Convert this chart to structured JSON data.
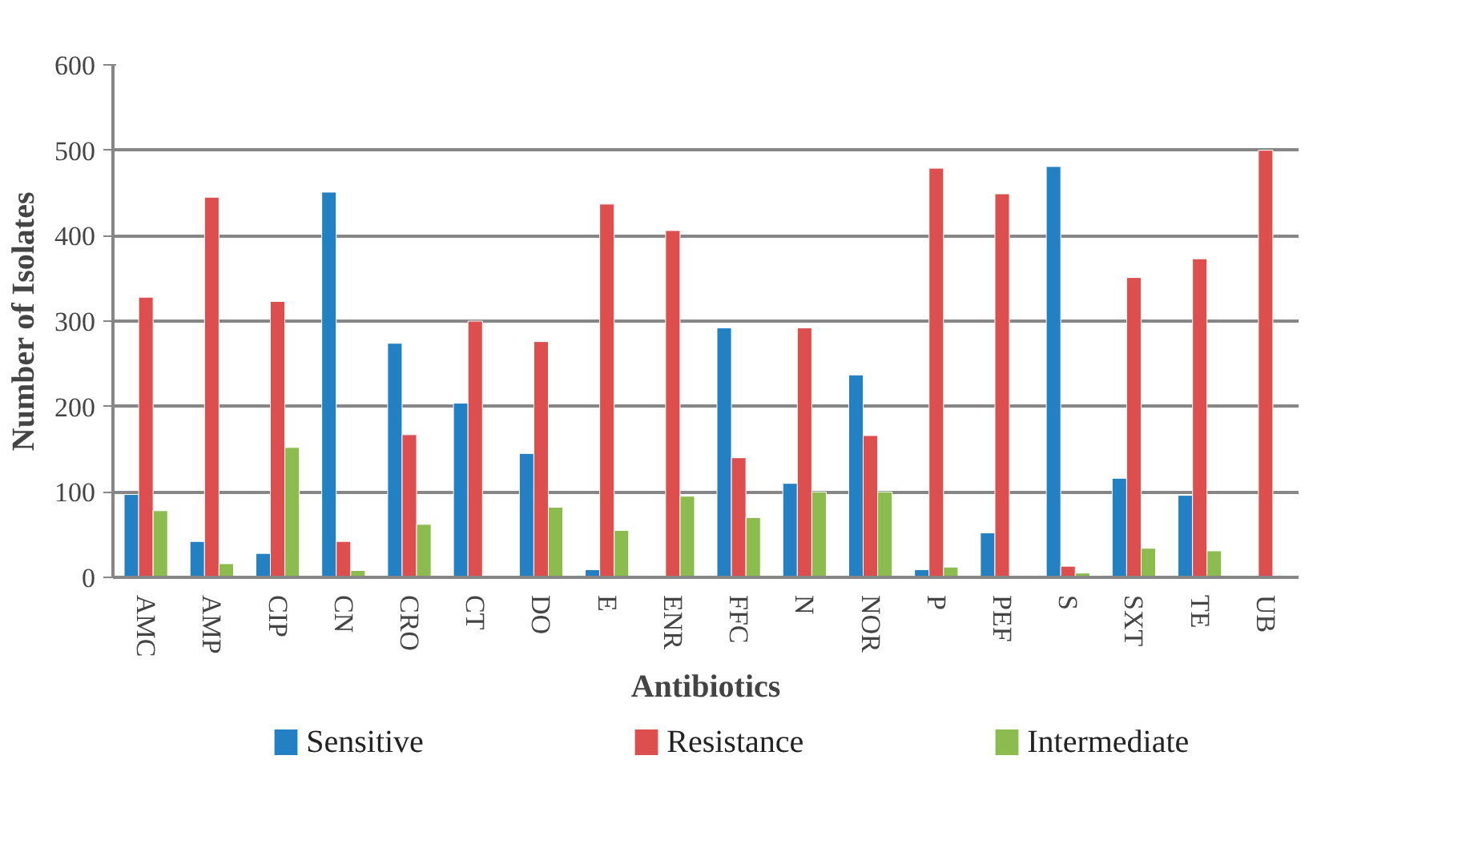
{
  "chart_data": {
    "type": "bar",
    "xlabel": "Antibiotics",
    "ylabel": "Number of Isolates",
    "categories": [
      "AMC",
      "AMP",
      "CIP",
      "CN",
      "CRO",
      "CT",
      "DO",
      "E",
      "ENR",
      "FFC",
      "N",
      "NOR",
      "P",
      "PEF",
      "S",
      "SXT",
      "TE",
      "UB"
    ],
    "series": [
      {
        "name": "Sensitive",
        "color": "#2381c3",
        "values": [
          97,
          42,
          28,
          451,
          274,
          204,
          145,
          9,
          null,
          292,
          110,
          237,
          9,
          52,
          481,
          116,
          96,
          null
        ]
      },
      {
        "name": "Resistance",
        "color": "#dd4f4f",
        "values": [
          328,
          445,
          323,
          42,
          167,
          300,
          276,
          437,
          406,
          140,
          292,
          166,
          479,
          449,
          13,
          351,
          373,
          500
        ]
      },
      {
        "name": "Intermediate",
        "color": "#8cbb4f",
        "values": [
          78,
          16,
          152,
          8,
          62,
          null,
          82,
          55,
          95,
          70,
          100,
          100,
          12,
          null,
          5,
          34,
          31,
          null
        ]
      }
    ],
    "ylim": [
      0,
      600
    ],
    "yticks": [
      0,
      100,
      200,
      300,
      400,
      500,
      600
    ],
    "grid": "y",
    "legend": "bottom"
  }
}
